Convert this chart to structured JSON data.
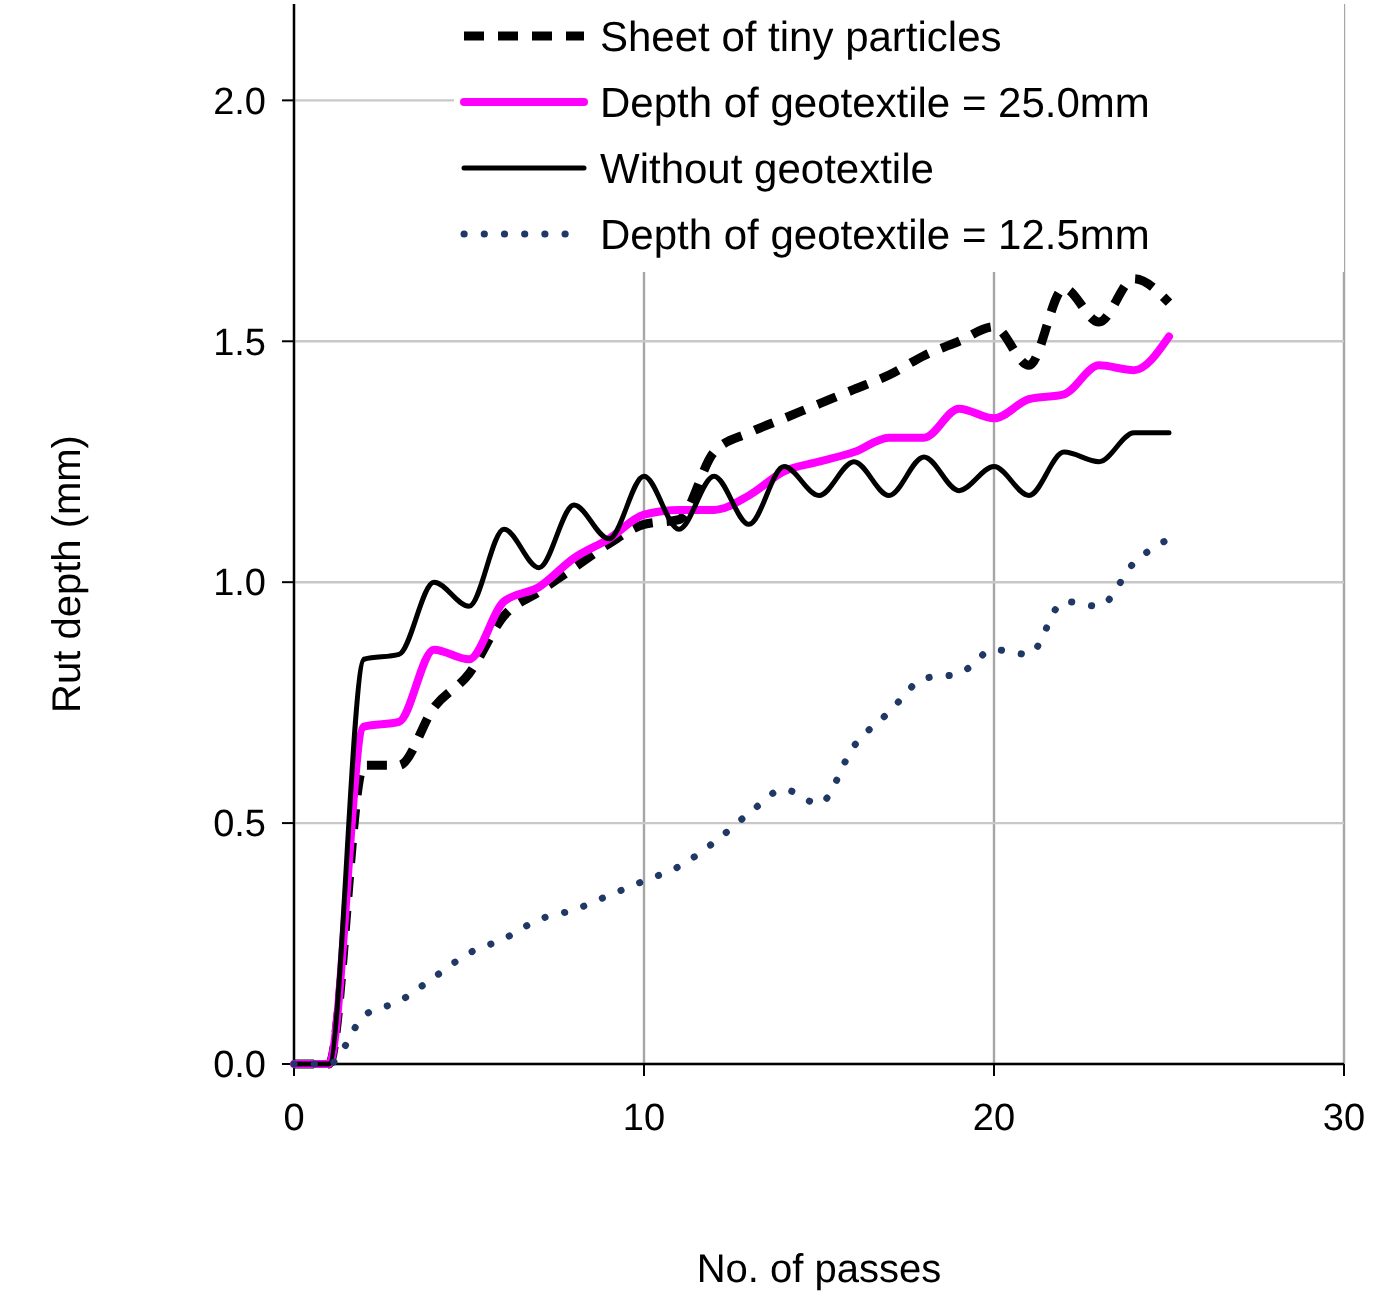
{
  "chart_data": {
    "type": "line",
    "xlabel": "No. of passes",
    "ylabel": "Rut depth (mm)",
    "x": [
      0,
      1,
      2,
      3,
      4,
      5,
      6,
      7,
      8,
      9,
      10,
      11,
      12,
      13,
      14,
      15,
      16,
      17,
      18,
      19,
      20,
      21,
      22,
      23,
      24,
      25
    ],
    "series": [
      {
        "name": "Sheet of tiny particles",
        "color": "#000000",
        "line_style": "dashed",
        "values": [
          0,
          0,
          0.62,
          0.62,
          0.74,
          0.81,
          0.93,
          0.98,
          1.03,
          1.08,
          1.12,
          1.13,
          1.27,
          1.31,
          1.34,
          1.37,
          1.4,
          1.43,
          1.47,
          1.5,
          1.53,
          1.45,
          1.61,
          1.54,
          1.63,
          1.58
        ]
      },
      {
        "name": "Depth of geotextile = 25.0mm",
        "color": "#ff00ff",
        "line_style": "solid",
        "values": [
          0,
          0,
          0.7,
          0.71,
          0.86,
          0.84,
          0.96,
          0.99,
          1.05,
          1.09,
          1.14,
          1.15,
          1.15,
          1.18,
          1.23,
          1.25,
          1.27,
          1.3,
          1.3,
          1.36,
          1.34,
          1.38,
          1.39,
          1.45,
          1.44,
          1.51
        ]
      },
      {
        "name": "Without geotextile",
        "color": "#000000",
        "line_style": "solid",
        "values": [
          0,
          0,
          0.84,
          0.85,
          1.0,
          0.95,
          1.11,
          1.03,
          1.16,
          1.09,
          1.22,
          1.11,
          1.22,
          1.12,
          1.24,
          1.18,
          1.25,
          1.18,
          1.26,
          1.19,
          1.24,
          1.18,
          1.27,
          1.25,
          1.31,
          1.31
        ]
      },
      {
        "name": "Depth of geotextile = 12.5mm",
        "color": "#1f3864",
        "line_style": "dotted",
        "values": [
          0,
          0,
          0.1,
          0.13,
          0.18,
          0.23,
          0.26,
          0.3,
          0.32,
          0.35,
          0.38,
          0.41,
          0.46,
          0.52,
          0.57,
          0.54,
          0.66,
          0.73,
          0.8,
          0.81,
          0.86,
          0.85,
          0.96,
          0.95,
          1.04,
          1.09
        ]
      }
    ],
    "xlim": [
      0,
      30
    ],
    "xticks": [
      0,
      10,
      20,
      30
    ],
    "ylim": [
      0,
      2.2
    ],
    "yticks": [
      {
        "value": 0,
        "label": "0.0"
      },
      {
        "value": 0.5,
        "label": "0.5"
      },
      {
        "value": 1,
        "label": "1.0"
      },
      {
        "value": 1.5,
        "label": "1.5"
      },
      {
        "value": 2,
        "label": "2.0"
      }
    ],
    "grid": true,
    "legend": "top right"
  }
}
